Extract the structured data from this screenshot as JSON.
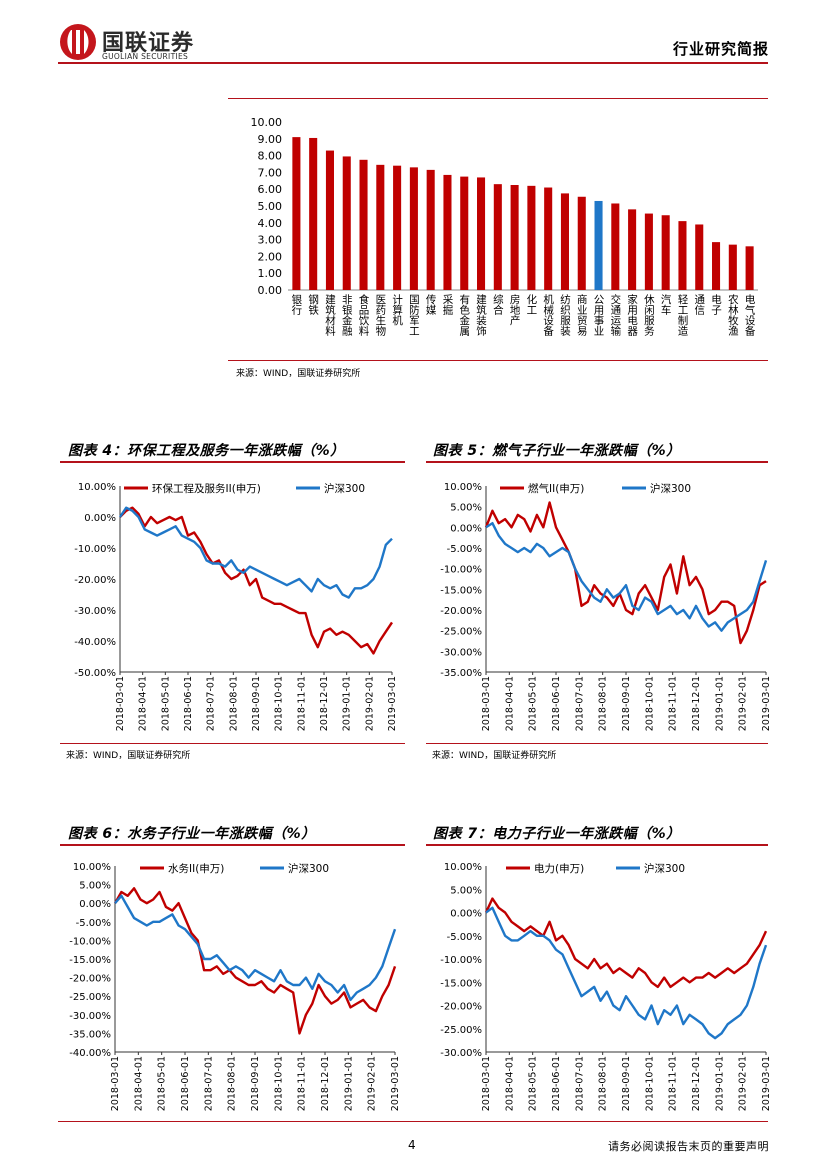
{
  "header": {
    "logo_cn": "国联证券",
    "logo_en": "GUOLIAN SECURITIES",
    "report_type": "行业研究简报"
  },
  "colors": {
    "red": "#c00000",
    "blue": "#1f77c8",
    "accent": "#b4121b"
  },
  "chart_data": [
    {
      "id": "industry",
      "type": "bar",
      "title": "",
      "source": "来源：WIND，国联证券研究所",
      "ylim": [
        0,
        10
      ],
      "ytick_labels": [
        "0.00",
        "1.00",
        "2.00",
        "3.00",
        "4.00",
        "5.00",
        "6.00",
        "7.00",
        "8.00",
        "9.00",
        "10.00"
      ],
      "categories": [
        "银行",
        "钢铁",
        "建筑材料",
        "非银金融",
        "食品饮料",
        "医药生物",
        "计算机",
        "国防军工",
        "传媒",
        "采掘",
        "有色金属",
        "建筑装饰",
        "综合",
        "房地产",
        "化工",
        "机械设备",
        "纺织服装",
        "商业贸易",
        "公用事业",
        "交通运输",
        "家用电器",
        "休闲服务",
        "汽车",
        "轻工制造",
        "通信",
        "电子",
        "农林牧渔",
        "电气设备"
      ],
      "values": [
        9.1,
        9.05,
        8.3,
        7.95,
        7.75,
        7.45,
        7.4,
        7.3,
        7.15,
        6.85,
        6.75,
        6.7,
        6.3,
        6.25,
        6.2,
        6.1,
        5.75,
        5.55,
        5.3,
        5.15,
        4.8,
        4.55,
        4.45,
        4.1,
        3.9,
        2.85,
        2.7,
        2.6
      ],
      "highlight": "公用事业"
    },
    {
      "id": "fig4",
      "type": "line",
      "title": "图表 4：环保工程及服务一年涨跌幅（%）",
      "source": "来源：WIND，国联证券研究所",
      "ylim": [
        -50,
        10
      ],
      "ytick_values": [
        10,
        0,
        -10,
        -20,
        -30,
        -40,
        -50
      ],
      "ytick_labels": [
        "10.00%",
        "0.00%",
        "-10.00%",
        "-20.00%",
        "-30.00%",
        "-40.00%",
        "-50.00%"
      ],
      "x_labels": [
        "2018-03-01",
        "2018-04-01",
        "2018-05-01",
        "2018-06-01",
        "2018-07-01",
        "2018-08-01",
        "2018-09-01",
        "2018-10-01",
        "2018-11-01",
        "2018-12-01",
        "2019-01-01",
        "2019-02-01",
        "2019-03-01"
      ],
      "series": [
        {
          "name": "环保工程及服务II(申万)",
          "color": "red",
          "values": [
            0,
            2,
            3,
            1,
            -3,
            0,
            -2,
            -1,
            0,
            -1,
            0,
            -6,
            -5,
            -8,
            -12,
            -15,
            -14,
            -18,
            -20,
            -19,
            -17,
            -22,
            -20,
            -26,
            -27,
            -28,
            -28,
            -29,
            -30,
            -31,
            -31,
            -38,
            -42,
            -37,
            -36,
            -38,
            -37,
            -38,
            -40,
            -42,
            -41,
            -44,
            -40,
            -37,
            -34
          ]
        },
        {
          "name": "沪深300",
          "color": "blue",
          "values": [
            0,
            3,
            2,
            0,
            -4,
            -5,
            -6,
            -5,
            -4,
            -3,
            -6,
            -7,
            -8,
            -10,
            -14,
            -15,
            -15,
            -16,
            -14,
            -17,
            -18,
            -16,
            -17,
            -18,
            -19,
            -20,
            -21,
            -22,
            -21,
            -20,
            -22,
            -24,
            -20,
            -22,
            -23,
            -22,
            -25,
            -26,
            -23,
            -23,
            -22,
            -20,
            -16,
            -9,
            -7
          ]
        }
      ]
    },
    {
      "id": "fig5",
      "type": "line",
      "title": "图表 5：燃气子行业一年涨跌幅（%）",
      "source": "来源：WIND，国联证券研究所",
      "ylim": [
        -35,
        10
      ],
      "ytick_values": [
        10,
        5,
        0,
        -5,
        -10,
        -15,
        -20,
        -25,
        -30,
        -35
      ],
      "ytick_labels": [
        "10.00%",
        "5.00%",
        "0.00%",
        "-5.00%",
        "-10.00%",
        "-15.00%",
        "-20.00%",
        "-25.00%",
        "-30.00%",
        "-35.00%"
      ],
      "x_labels": [
        "2018-03-01",
        "2018-04-01",
        "2018-05-01",
        "2018-06-01",
        "2018-07-01",
        "2018-08-01",
        "2018-09-01",
        "2018-10-01",
        "2018-11-01",
        "2018-12-01",
        "2019-01-01",
        "2019-02-01",
        "2019-03-01"
      ],
      "series": [
        {
          "name": "燃气II(申万)",
          "color": "red",
          "values": [
            0,
            4,
            1,
            2,
            0,
            3,
            2,
            -1,
            3,
            0,
            6,
            0,
            -3,
            -6,
            -10,
            -19,
            -18,
            -14,
            -16,
            -17,
            -19,
            -16,
            -20,
            -21,
            -16,
            -14,
            -17,
            -20,
            -12,
            -9,
            -16,
            -7,
            -14,
            -12,
            -15,
            -21,
            -20,
            -18,
            -18,
            -19,
            -28,
            -25,
            -20,
            -14,
            -13
          ]
        },
        {
          "name": "沪深300",
          "color": "blue",
          "values": [
            0,
            1,
            -2,
            -4,
            -5,
            -6,
            -5,
            -6,
            -4,
            -5,
            -7,
            -6,
            -5,
            -6,
            -10,
            -13,
            -15,
            -17,
            -18,
            -15,
            -17,
            -16,
            -14,
            -19,
            -20,
            -17,
            -18,
            -21,
            -20,
            -19,
            -21,
            -20,
            -22,
            -19,
            -22,
            -24,
            -23,
            -25,
            -23,
            -22,
            -21,
            -20,
            -18,
            -13,
            -8
          ]
        }
      ]
    },
    {
      "id": "fig6",
      "type": "line",
      "title": "图表 6：水务子行业一年涨跌幅（%）",
      "source": "",
      "ylim": [
        -40,
        10
      ],
      "ytick_values": [
        10,
        5,
        0,
        -5,
        -10,
        -15,
        -20,
        -25,
        -30,
        -35,
        -40
      ],
      "ytick_labels": [
        "10.00%",
        "5.00%",
        "0.00%",
        "-5.00%",
        "-10.00%",
        "-15.00%",
        "-20.00%",
        "-25.00%",
        "-30.00%",
        "-35.00%",
        "-40.00%"
      ],
      "x_labels": [
        "2018-03-01",
        "2018-04-01",
        "2018-05-01",
        "2018-06-01",
        "2018-07-01",
        "2018-08-01",
        "2018-09-01",
        "2018-10-01",
        "2018-11-01",
        "2018-12-01",
        "2019-01-01",
        "2019-02-01",
        "2019-03-01"
      ],
      "series": [
        {
          "name": "水务II(申万)",
          "color": "red",
          "values": [
            0,
            3,
            2,
            4,
            1,
            0,
            1,
            3,
            -1,
            -2,
            0,
            -4,
            -8,
            -10,
            -18,
            -18,
            -17,
            -19,
            -18,
            -20,
            -21,
            -22,
            -22,
            -21,
            -23,
            -24,
            -22,
            -23,
            -24,
            -35,
            -30,
            -27,
            -22,
            -25,
            -27,
            -26,
            -24,
            -28,
            -27,
            -26,
            -28,
            -29,
            -25,
            -22,
            -17
          ]
        },
        {
          "name": "沪深300",
          "color": "blue",
          "values": [
            0,
            2,
            -1,
            -4,
            -5,
            -6,
            -5,
            -5,
            -4,
            -3,
            -6,
            -7,
            -9,
            -11,
            -15,
            -15,
            -14,
            -16,
            -18,
            -17,
            -18,
            -20,
            -18,
            -19,
            -20,
            -21,
            -18,
            -21,
            -22,
            -22,
            -20,
            -23,
            -19,
            -21,
            -22,
            -24,
            -22,
            -26,
            -24,
            -23,
            -22,
            -20,
            -17,
            -12,
            -7
          ]
        }
      ]
    },
    {
      "id": "fig7",
      "type": "line",
      "title": "图表 7：电力子行业一年涨跌幅（%）",
      "source": "",
      "ylim": [
        -30,
        10
      ],
      "ytick_values": [
        10,
        5,
        0,
        -5,
        -10,
        -15,
        -20,
        -25,
        -30
      ],
      "ytick_labels": [
        "10.00%",
        "5.00%",
        "0.00%",
        "-5.00%",
        "-10.00%",
        "-15.00%",
        "-20.00%",
        "-25.00%",
        "-30.00%"
      ],
      "x_labels": [
        "2018-03-01",
        "2018-04-01",
        "2018-05-01",
        "2018-06-01",
        "2018-07-01",
        "2018-08-01",
        "2018-09-01",
        "2018-10-01",
        "2018-11-01",
        "2018-12-01",
        "2019-01-01",
        "2019-02-01",
        "2019-03-01"
      ],
      "series": [
        {
          "name": "电力(申万)",
          "color": "red",
          "values": [
            0,
            3,
            1,
            0,
            -2,
            -3,
            -4,
            -3,
            -4,
            -5,
            -2,
            -6,
            -5,
            -7,
            -10,
            -11,
            -12,
            -10,
            -12,
            -11,
            -13,
            -12,
            -13,
            -14,
            -12,
            -13,
            -15,
            -16,
            -14,
            -16,
            -15,
            -14,
            -15,
            -14,
            -14,
            -13,
            -14,
            -13,
            -12,
            -13,
            -12,
            -11,
            -9,
            -7,
            -4
          ]
        },
        {
          "name": "沪深300",
          "color": "blue",
          "values": [
            0,
            1,
            -2,
            -5,
            -6,
            -6,
            -5,
            -4,
            -5,
            -5,
            -6,
            -8,
            -9,
            -12,
            -15,
            -18,
            -17,
            -16,
            -19,
            -17,
            -20,
            -21,
            -18,
            -20,
            -22,
            -23,
            -20,
            -24,
            -21,
            -22,
            -20,
            -24,
            -22,
            -23,
            -24,
            -26,
            -27,
            -26,
            -24,
            -23,
            -22,
            -20,
            -16,
            -11,
            -7
          ]
        }
      ]
    }
  ],
  "footer": {
    "page_number": "4",
    "disclaimer": "请务必阅读报告末页的重要声明"
  }
}
